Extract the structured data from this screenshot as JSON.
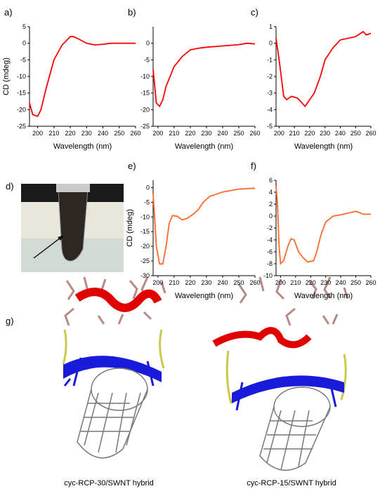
{
  "chart_data": [
    {
      "type": "line",
      "label": "a)",
      "xlabel": "Wavelength (nm)",
      "ylabel": "CD (mdeg)",
      "color": "#ff0000",
      "x": [
        195,
        197,
        200,
        202,
        205,
        210,
        215,
        220,
        222,
        225,
        230,
        235,
        240,
        245,
        250,
        255,
        260
      ],
      "values": [
        -18,
        -21.5,
        -22,
        -20,
        -14,
        -5,
        -0.5,
        2,
        2,
        1.3,
        0,
        -0.5,
        -0.3,
        0,
        0,
        0,
        0
      ],
      "xlim": [
        195,
        260
      ],
      "xticks": [
        200,
        210,
        220,
        230,
        240,
        250,
        260
      ],
      "ylim": [
        -25,
        5
      ],
      "yticks": [
        -25,
        -20,
        -15,
        -10,
        -5,
        0,
        5
      ]
    },
    {
      "type": "line",
      "label": "b)",
      "xlabel": "Wavelength (nm)",
      "color": "#ff0000",
      "x": [
        197,
        199,
        201,
        203,
        205,
        210,
        215,
        220,
        225,
        230,
        240,
        250,
        255,
        260
      ],
      "values": [
        -8,
        -18,
        -19,
        -17,
        -13,
        -7,
        -4,
        -2,
        -1.5,
        -1.2,
        -0.8,
        -0.4,
        0,
        -0.2
      ],
      "xlim": [
        197,
        260
      ],
      "xticks": [
        200,
        210,
        220,
        230,
        240,
        250,
        260
      ],
      "ylim": [
        -25,
        5
      ],
      "yticks": [
        -25,
        -20,
        -15,
        -10,
        -5,
        0
      ]
    },
    {
      "type": "line",
      "label": "c)",
      "xlabel": "Wavelength (nm)",
      "color": "#ff0000",
      "x": [
        198,
        200,
        203,
        205,
        208,
        212,
        215,
        217,
        220,
        223,
        227,
        230,
        235,
        240,
        245,
        250,
        255,
        257,
        260
      ],
      "values": [
        0.3,
        -1,
        -3.2,
        -3.4,
        -3.2,
        -3.3,
        -3.6,
        -3.8,
        -3.4,
        -3,
        -2,
        -1,
        -0.3,
        0.2,
        0.3,
        0.4,
        0.7,
        0.5,
        0.6
      ],
      "xlim": [
        198,
        260
      ],
      "xticks": [
        200,
        210,
        220,
        230,
        240,
        250,
        260
      ],
      "ylim": [
        -5,
        1
      ],
      "yticks": [
        -5,
        -4,
        -3,
        -2,
        -1,
        0,
        1
      ]
    },
    {
      "type": "line",
      "label": "e)",
      "xlabel": "Wavelength (nm)",
      "ylabel": "CD (mdeg)",
      "color": "#ff6a2a",
      "x": [
        197,
        199,
        201,
        203,
        205,
        207,
        209,
        212,
        215,
        218,
        222,
        225,
        228,
        232,
        240,
        250,
        260
      ],
      "values": [
        -2,
        -20,
        -26,
        -26,
        -20,
        -12,
        -9.5,
        -9.8,
        -11,
        -10.5,
        -9,
        -7.5,
        -5,
        -3,
        -1.5,
        -0.5,
        -0.2
      ],
      "xlim": [
        197,
        260
      ],
      "xticks": [
        200,
        210,
        220,
        230,
        240,
        250,
        260
      ],
      "ylim": [
        -30,
        2.5
      ],
      "yticks": [
        -30,
        -25,
        -20,
        -15,
        -10,
        -5,
        0
      ]
    },
    {
      "type": "line",
      "label": "f)",
      "xlabel": "Wavelength (nm)",
      "color": "#ff6a2a",
      "x": [
        197,
        198,
        199,
        200,
        202,
        205,
        207,
        209,
        212,
        215,
        218,
        222,
        224,
        227,
        230,
        235,
        240,
        245,
        250,
        255,
        260
      ],
      "values": [
        5,
        2,
        -5,
        -8,
        -7.5,
        -5,
        -3.8,
        -4,
        -6,
        -7,
        -7.7,
        -7.5,
        -6,
        -3,
        -1,
        0,
        0.2,
        0.5,
        0.8,
        0.3,
        0.3
      ],
      "xlim": [
        197,
        260
      ],
      "xticks": [
        200,
        210,
        220,
        230,
        240,
        250,
        260
      ],
      "ylim": [
        -10,
        6
      ],
      "yticks": [
        -10,
        -8,
        -6,
        -4,
        -2,
        0,
        2,
        4,
        6
      ]
    }
  ],
  "photo": {
    "label": "d)"
  },
  "models": {
    "label": "g)",
    "captions": [
      "cyc-RCP-30/SWNT hybrid",
      "cyc-RCP-15/SWNT hybrid"
    ]
  }
}
